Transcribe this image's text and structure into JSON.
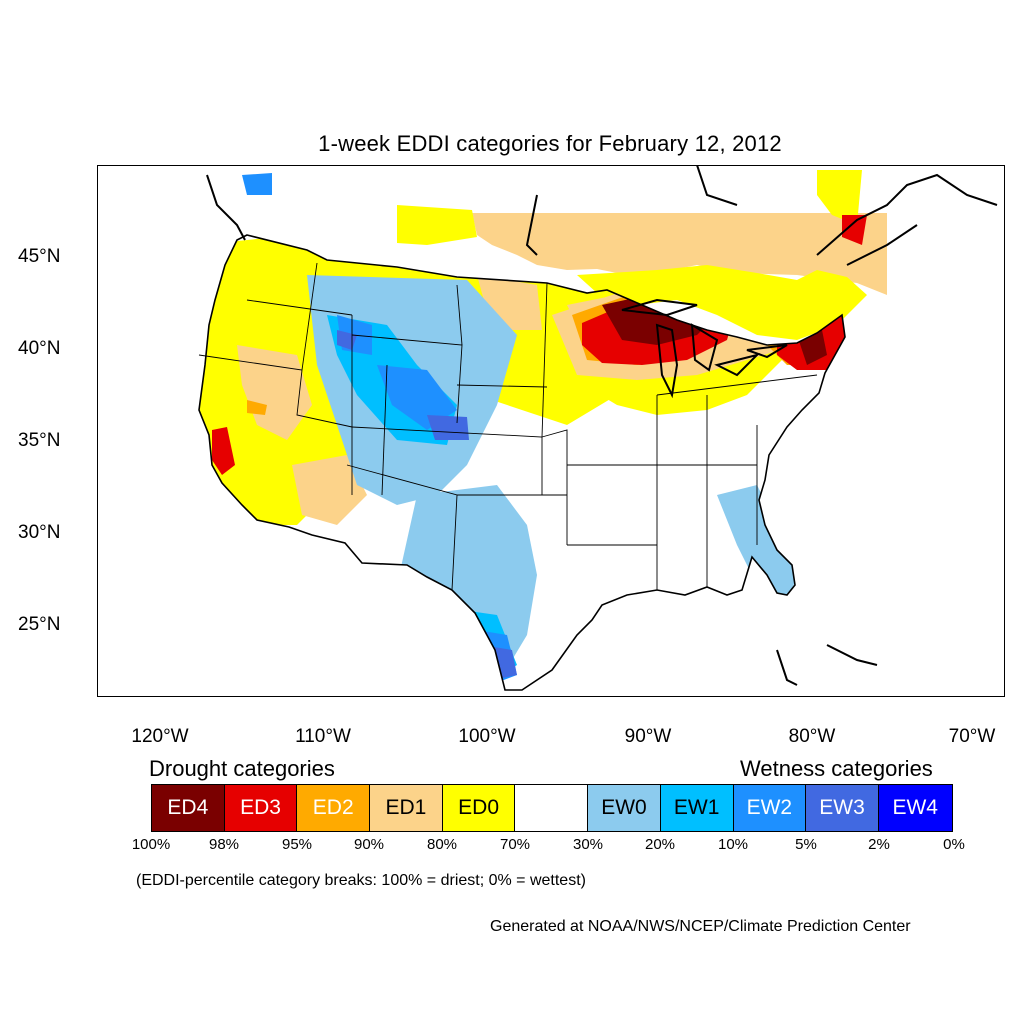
{
  "title": "1-week EDDI categories for February 12, 2012",
  "axes": {
    "lon_labels": [
      "120°W",
      "110°W",
      "100°W",
      "90°W",
      "80°W",
      "70°W"
    ],
    "lat_labels": [
      "45°N",
      "40°N",
      "35°N",
      "30°N",
      "25°N"
    ]
  },
  "legend": {
    "drought_heading": "Drought categories",
    "wetness_heading": "Wetness categories",
    "categories": [
      {
        "label": "ED4",
        "color": "#7a0000",
        "text_color": "#ffffff"
      },
      {
        "label": "ED3",
        "color": "#e60000",
        "text_color": "#ffffff"
      },
      {
        "label": "ED2",
        "color": "#ffaa00",
        "text_color": "#ffffff"
      },
      {
        "label": "ED1",
        "color": "#fcd38a",
        "text_color": "#000000"
      },
      {
        "label": "ED0",
        "color": "#ffff00",
        "text_color": "#000000"
      },
      {
        "label": "",
        "color": "#ffffff",
        "text_color": "#000000"
      },
      {
        "label": "EW0",
        "color": "#8ccbee",
        "text_color": "#000000"
      },
      {
        "label": "EW1",
        "color": "#00bfff",
        "text_color": "#000000"
      },
      {
        "label": "EW2",
        "color": "#1e90ff",
        "text_color": "#ffffff"
      },
      {
        "label": "EW3",
        "color": "#4169e1",
        "text_color": "#ffffff"
      },
      {
        "label": "EW4",
        "color": "#0000ff",
        "text_color": "#ffffff"
      }
    ],
    "breaks": [
      "100%",
      "98%",
      "95%",
      "90%",
      "80%",
      "70%",
      "30%",
      "20%",
      "10%",
      "5%",
      "2%",
      "0%"
    ]
  },
  "note": "(EDDI-percentile category breaks: 100% = driest; 0% = wettest)",
  "credit": "Generated at NOAA/NWS/NCEP/Climate Prediction Center"
}
